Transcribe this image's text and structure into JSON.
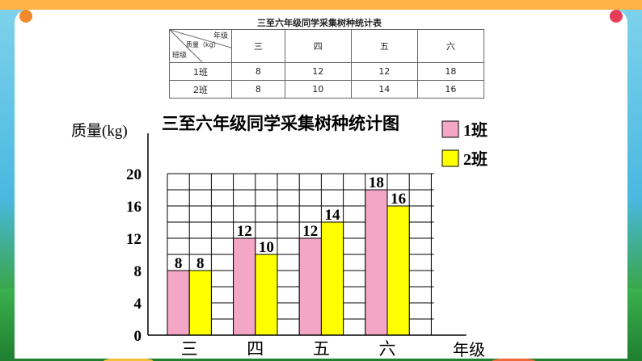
{
  "table": {
    "title": "三至六年级同学采集树种统计表",
    "corner_top": "年级",
    "corner_mid": "质量（kg）",
    "corner_bottom": "班级",
    "headers": [
      "三",
      "四",
      "五",
      "六"
    ],
    "rows": [
      {
        "label": "1班",
        "values": [
          "8",
          "12",
          "12",
          "18"
        ]
      },
      {
        "label": "2班",
        "values": [
          "8",
          "10",
          "14",
          "16"
        ]
      }
    ]
  },
  "chart_data": {
    "type": "bar",
    "title": "三至六年级同学采集树种统计图",
    "ylabel": "质量(kg)",
    "xlabel": "年级",
    "categories": [
      "三",
      "四",
      "五",
      "六"
    ],
    "series": [
      {
        "name": "1班",
        "values": [
          8,
          12,
          12,
          18
        ],
        "color": "#f4a6c6"
      },
      {
        "name": "2班",
        "values": [
          8,
          10,
          14,
          16
        ],
        "color": "#ffff00"
      }
    ],
    "ylim": [
      0,
      20
    ],
    "yticks": [
      0,
      4,
      8,
      12,
      16,
      20
    ],
    "grid": true,
    "legend_position": "top-right",
    "data_labels": true
  }
}
